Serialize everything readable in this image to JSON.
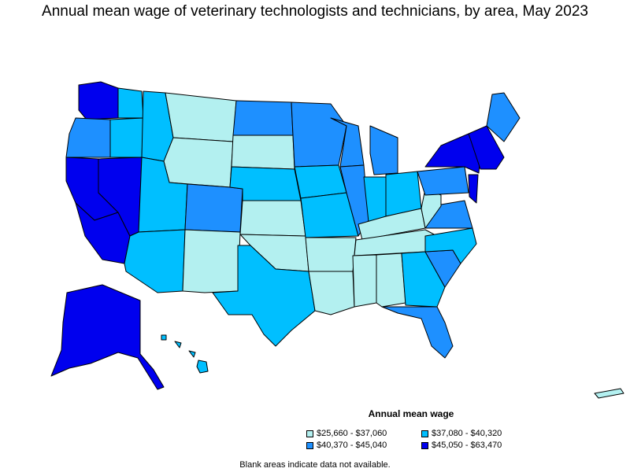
{
  "title": "Annual mean wage of veterinary technologists and technicians, by area, May 2023",
  "legend": {
    "title": "Annual mean wage",
    "items": [
      {
        "label": "$25,660 - $37,060",
        "color": "#b3f0f0"
      },
      {
        "label": "$37,080 - $40,320",
        "color": "#00bfff"
      },
      {
        "label": "$40,370 - $45,040",
        "color": "#1e90ff"
      },
      {
        "label": "$45,050 - $63,470",
        "color": "#0000ee"
      }
    ]
  },
  "note": "Blank areas indicate data not available.",
  "colors": {
    "tier1": "#b3f0f0",
    "tier2": "#00bfff",
    "tier3": "#1e90ff",
    "tier4": "#0000ee",
    "blank": "#ffffff",
    "border": "#000000"
  },
  "regions": [
    {
      "name": "washington-west",
      "tier": 4
    },
    {
      "name": "washington-east",
      "tier": 2
    },
    {
      "name": "oregon-west",
      "tier": 3
    },
    {
      "name": "oregon-east",
      "tier": 2
    },
    {
      "name": "california-north",
      "tier": 4
    },
    {
      "name": "california-south",
      "tier": 4
    },
    {
      "name": "nevada",
      "tier": 4
    },
    {
      "name": "idaho",
      "tier": 2
    },
    {
      "name": "montana",
      "tier": 1
    },
    {
      "name": "wyoming",
      "tier": 1
    },
    {
      "name": "utah",
      "tier": 2
    },
    {
      "name": "arizona",
      "tier": 2
    },
    {
      "name": "colorado",
      "tier": 3
    },
    {
      "name": "new-mexico",
      "tier": 1
    },
    {
      "name": "north-dakota",
      "tier": 3
    },
    {
      "name": "south-dakota",
      "tier": 1
    },
    {
      "name": "nebraska",
      "tier": 2
    },
    {
      "name": "kansas",
      "tier": 1
    },
    {
      "name": "oklahoma",
      "tier": 1
    },
    {
      "name": "texas",
      "tier": 2
    },
    {
      "name": "minnesota",
      "tier": 3
    },
    {
      "name": "iowa",
      "tier": 2
    },
    {
      "name": "missouri",
      "tier": 2
    },
    {
      "name": "arkansas",
      "tier": 1
    },
    {
      "name": "louisiana",
      "tier": 1
    },
    {
      "name": "wisconsin",
      "tier": 3
    },
    {
      "name": "illinois",
      "tier": 3
    },
    {
      "name": "michigan",
      "tier": 3
    },
    {
      "name": "indiana",
      "tier": 2
    },
    {
      "name": "ohio",
      "tier": 2
    },
    {
      "name": "kentucky",
      "tier": 1
    },
    {
      "name": "tennessee",
      "tier": 1
    },
    {
      "name": "mississippi",
      "tier": 1
    },
    {
      "name": "alabama",
      "tier": 1
    },
    {
      "name": "georgia",
      "tier": 2
    },
    {
      "name": "florida",
      "tier": 3
    },
    {
      "name": "south-carolina",
      "tier": 3
    },
    {
      "name": "north-carolina",
      "tier": 2
    },
    {
      "name": "virginia",
      "tier": 3
    },
    {
      "name": "west-virginia",
      "tier": 1
    },
    {
      "name": "pennsylvania",
      "tier": 3
    },
    {
      "name": "new-york",
      "tier": 4
    },
    {
      "name": "new-jersey",
      "tier": 4
    },
    {
      "name": "new-england",
      "tier": 4
    },
    {
      "name": "maine",
      "tier": 3
    },
    {
      "name": "alaska",
      "tier": 4
    },
    {
      "name": "hawaii",
      "tier": 2
    },
    {
      "name": "puerto-rico",
      "tier": 1
    }
  ]
}
